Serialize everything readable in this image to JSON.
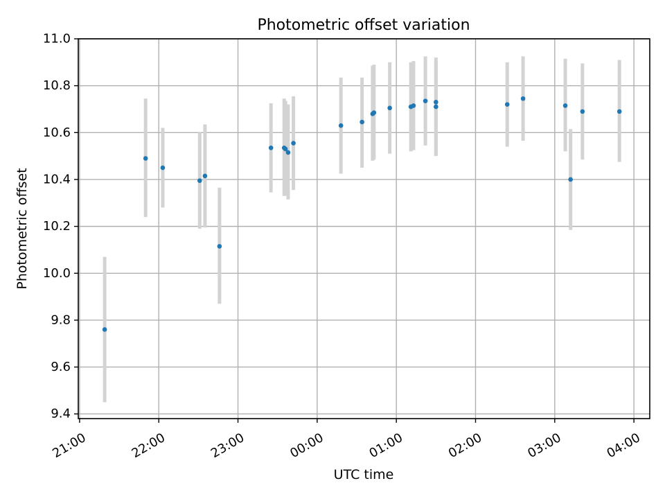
{
  "chart_data": {
    "type": "scatter",
    "title": "Photometric offset variation",
    "xlabel": "UTC time",
    "ylabel": "Photometric offset",
    "xlim": [
      "20:59",
      "04:12"
    ],
    "ylim": [
      9.38,
      11.0
    ],
    "x_ticks": [
      "21:00",
      "22:00",
      "23:00",
      "00:00",
      "01:00",
      "02:00",
      "03:00",
      "04:00"
    ],
    "y_ticks": [
      "9.4",
      "9.6",
      "9.8",
      "10.0",
      "10.2",
      "10.4",
      "10.6",
      "10.8",
      "11.0"
    ],
    "grid": true,
    "colors": {
      "point": "#1f77b4",
      "errorbar": "#d3d3d3",
      "grid": "#b0b0b0"
    },
    "series": [
      {
        "points": [
          {
            "x": "21:19",
            "y": 9.76,
            "ylow": 9.45,
            "yhigh": 10.07
          },
          {
            "x": "21:50",
            "y": 10.49,
            "ylow": 10.24,
            "yhigh": 10.745
          },
          {
            "x": "22:03",
            "y": 10.45,
            "ylow": 10.28,
            "yhigh": 10.62
          },
          {
            "x": "22:31",
            "y": 10.395,
            "ylow": 10.19,
            "yhigh": 10.6
          },
          {
            "x": "22:35",
            "y": 10.415,
            "ylow": 10.195,
            "yhigh": 10.635
          },
          {
            "x": "22:46",
            "y": 10.115,
            "ylow": 9.87,
            "yhigh": 10.365
          },
          {
            "x": "23:25",
            "y": 10.535,
            "ylow": 10.345,
            "yhigh": 10.725
          },
          {
            "x": "23:35",
            "y": 10.535,
            "ylow": 10.33,
            "yhigh": 10.745
          },
          {
            "x": "23:36",
            "y": 10.53,
            "ylow": 10.33,
            "yhigh": 10.735
          },
          {
            "x": "23:38",
            "y": 10.515,
            "ylow": 10.315,
            "yhigh": 10.72
          },
          {
            "x": "23:42",
            "y": 10.555,
            "ylow": 10.355,
            "yhigh": 10.755
          },
          {
            "x": "00:18",
            "y": 10.63,
            "ylow": 10.425,
            "yhigh": 10.835
          },
          {
            "x": "00:34",
            "y": 10.645,
            "ylow": 10.45,
            "yhigh": 10.835
          },
          {
            "x": "00:42",
            "y": 10.68,
            "ylow": 10.48,
            "yhigh": 10.885
          },
          {
            "x": "00:43",
            "y": 10.685,
            "ylow": 10.485,
            "yhigh": 10.89
          },
          {
            "x": "00:55",
            "y": 10.705,
            "ylow": 10.51,
            "yhigh": 10.9
          },
          {
            "x": "01:11",
            "y": 10.71,
            "ylow": 10.52,
            "yhigh": 10.9
          },
          {
            "x": "01:13",
            "y": 10.715,
            "ylow": 10.525,
            "yhigh": 10.905
          },
          {
            "x": "01:22",
            "y": 10.735,
            "ylow": 10.545,
            "yhigh": 10.925
          },
          {
            "x": "01:30",
            "y": 10.73,
            "ylow": 10.505,
            "yhigh": 10.92
          },
          {
            "x": "01:30",
            "y": 10.71,
            "ylow": 10.5,
            "yhigh": 10.905
          },
          {
            "x": "02:24",
            "y": 10.72,
            "ylow": 10.54,
            "yhigh": 10.9
          },
          {
            "x": "02:36",
            "y": 10.745,
            "ylow": 10.565,
            "yhigh": 10.925
          },
          {
            "x": "03:08",
            "y": 10.715,
            "ylow": 10.52,
            "yhigh": 10.915
          },
          {
            "x": "03:12",
            "y": 10.4,
            "ylow": 10.185,
            "yhigh": 10.615
          },
          {
            "x": "03:21",
            "y": 10.69,
            "ylow": 10.485,
            "yhigh": 10.895
          },
          {
            "x": "03:49",
            "y": 10.69,
            "ylow": 10.475,
            "yhigh": 10.91
          }
        ]
      }
    ]
  }
}
